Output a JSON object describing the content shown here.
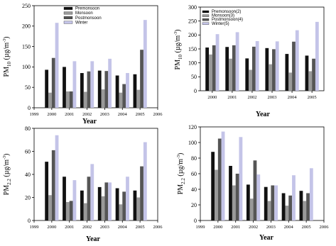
{
  "colors": {
    "Premonsoon": "#111111",
    "Monsoon": "#999999",
    "Postmonsoon": "#555555",
    "Winter": "#c4c4e8"
  },
  "chart_data": [
    {
      "id": "top-left",
      "type": "bar",
      "ylabel_main": "PM",
      "ylabel_sub": "10",
      "ylabel_unit": " (µg/m",
      "ylabel_sup": "-3",
      "ylabel_close": ")",
      "xlabel": "Year",
      "ylim": [
        0,
        250
      ],
      "yticks": [
        "0",
        "50",
        "100",
        "150",
        "200",
        "250"
      ],
      "xlim": [
        1999,
        2006
      ],
      "xticks": [
        "1999",
        "2000",
        "2001",
        "2002",
        "2003",
        "2004",
        "2005",
        "2006"
      ],
      "categories": [
        "2000",
        "2001",
        "2002",
        "2003",
        "2004",
        "2005"
      ],
      "legend": {
        "position": "top-left",
        "labels": [
          "Premonsoon",
          "Monsoon",
          "Postmonsoon",
          "Winter"
        ]
      },
      "series": [
        {
          "name": "Premonsoon",
          "values": [
            93,
            100,
            85,
            91,
            79,
            82
          ]
        },
        {
          "name": "Monsoon",
          "values": [
            37,
            40,
            39,
            45,
            37,
            44
          ]
        },
        {
          "name": "Postmonsoon",
          "values": [
            122,
            40,
            89,
            90,
            58,
            142
          ]
        },
        {
          "name": "Winter",
          "values": [
            208,
            114,
            114,
            120,
            85,
            215
          ]
        }
      ]
    },
    {
      "id": "top-right",
      "type": "bar",
      "ylabel_main": "PM",
      "ylabel_sub": "10",
      "ylabel_unit": " (µg/m",
      "ylabel_sup": "-3",
      "ylabel_close": ")",
      "xlabel": "Year",
      "ylim": [
        0,
        300
      ],
      "yticks": [
        "0",
        "50",
        "100",
        "150",
        "200",
        "250",
        "300"
      ],
      "xlim": [
        1999.4,
        2005.6
      ],
      "xticks": [
        "2000",
        "2001",
        "2002",
        "2003",
        "2004",
        "2005"
      ],
      "categories": [
        "2000",
        "2001",
        "2002",
        "2003",
        "2004",
        "2005"
      ],
      "legend": {
        "position": "top-left",
        "labels": [
          "Premonsoon(2)",
          "Monsoon(3)",
          "Postmonsoon(4)",
          "Winter(5)"
        ]
      },
      "series": [
        {
          "name": "Premonsoon(2)",
          "values": [
            155,
            157,
            116,
            153,
            132,
            126
          ]
        },
        {
          "name": "Monsoon(3)",
          "values": [
            130,
            115,
            75,
            95,
            65,
            70
          ]
        },
        {
          "name": "Postmonsoon(4)",
          "values": [
            163,
            163,
            158,
            149,
            176,
            115
          ]
        },
        {
          "name": "Winter(5)",
          "values": [
            203,
            210,
            178,
            177,
            217,
            247
          ]
        }
      ]
    },
    {
      "id": "bottom-left",
      "type": "bar",
      "ylabel_main": "PM",
      "ylabel_sub": "2.2",
      "ylabel_unit": " (µg/m",
      "ylabel_sup": "-3",
      "ylabel_close": ")",
      "xlabel": "Year",
      "ylim": [
        0,
        80
      ],
      "yticks": [
        "0",
        "20",
        "40",
        "60",
        "80"
      ],
      "xlim": [
        1999,
        2006
      ],
      "xticks": [
        "1999",
        "2000",
        "2001",
        "2002",
        "2003",
        "2004",
        "2005",
        "2006"
      ],
      "categories": [
        "2000",
        "2001",
        "2002",
        "2003",
        "2004",
        "2005"
      ],
      "legend": null,
      "series": [
        {
          "name": "Premonsoon",
          "values": [
            51,
            38,
            26,
            29,
            28,
            26
          ]
        },
        {
          "name": "Monsoon",
          "values": [
            22,
            16,
            15,
            21,
            14,
            20
          ]
        },
        {
          "name": "Postmonsoon",
          "values": [
            61,
            17,
            38,
            33,
            25,
            47
          ]
        },
        {
          "name": "Winter",
          "values": [
            74,
            35,
            49,
            33,
            38,
            68
          ]
        }
      ]
    },
    {
      "id": "bottom-right",
      "type": "bar",
      "ylabel_main": "PM",
      "ylabel_sub": "2.2",
      "ylabel_unit": " (µg/m",
      "ylabel_sup": "-3",
      "ylabel_close": ")",
      "xlabel": "Year",
      "ylim": [
        0,
        120
      ],
      "yticks": [
        "0",
        "20",
        "40",
        "60",
        "80",
        "100",
        "120"
      ],
      "xlim": [
        1999,
        2006
      ],
      "xticks": [
        "1999",
        "2000",
        "2001",
        "2002",
        "2003",
        "2004",
        "2005",
        "2006"
      ],
      "categories": [
        "2000",
        "2001",
        "2002",
        "2003",
        "2004",
        "2005"
      ],
      "legend": null,
      "series": [
        {
          "name": "Premonsoon",
          "values": [
            88,
            70,
            46,
            43,
            35,
            38
          ]
        },
        {
          "name": "Monsoon",
          "values": [
            65,
            45,
            28,
            25,
            19,
            25
          ]
        },
        {
          "name": "Postmonsoon",
          "values": [
            105,
            60,
            77,
            45,
            32,
            35
          ]
        },
        {
          "name": "Winter",
          "values": [
            114,
            107,
            59,
            45,
            58,
            67
          ]
        }
      ]
    }
  ]
}
